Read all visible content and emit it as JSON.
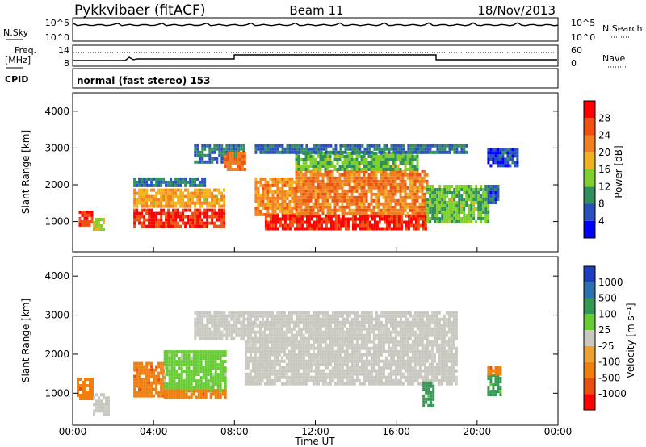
{
  "header": {
    "station": "Pykkvibaer (fitACF)",
    "beam": "Beam 11",
    "date": "18/Nov/2013"
  },
  "noise_panel": {
    "left_label": "N.Sky",
    "right_label": "N.Search",
    "left_ticks": [
      "10^5",
      "10^0"
    ],
    "right_ticks": [
      "10^5",
      "10^0"
    ]
  },
  "freq_panel": {
    "left_label_1": "Freq.",
    "left_label_2": "[MHz]",
    "right_label": "Nave",
    "left_ticks": [
      "14",
      "8"
    ],
    "right_ticks": [
      "60",
      "0"
    ]
  },
  "cpid": {
    "label": "CPID",
    "mode": "normal (fast stereo) 153"
  },
  "colors": {
    "power_scale": [
      "#0000ff",
      "#2b4fbf",
      "#2f8f5f",
      "#7fcf2f",
      "#f0b020",
      "#f08020",
      "#f05010",
      "#ff0000"
    ],
    "velocity_scale": [
      "#ff0000",
      "#e85010",
      "#f07f10",
      "#f0a030",
      "#c8c8c0",
      "#66cc33",
      "#339955",
      "#2b70b0",
      "#1f3fbf"
    ]
  },
  "chart_data": [
    {
      "type": "heatmap",
      "title": "Power",
      "ylabel": "Slant Range [km]",
      "ylim": [
        180,
        4500
      ],
      "yticks": [
        "1000",
        "2000",
        "3000",
        "4000"
      ],
      "xlim": [
        "00:00",
        "24:00"
      ],
      "colorbar": {
        "label": "Power [dB]",
        "ticks": [
          "4",
          "8",
          "12",
          "16",
          "20",
          "24",
          "28"
        ],
        "range": [
          0,
          30
        ]
      },
      "regions": [
        {
          "t": [
            0.3,
            1.0
          ],
          "range": [
            900,
            1300
          ],
          "value": 26
        },
        {
          "t": [
            1.0,
            1.5
          ],
          "range": [
            800,
            1100
          ],
          "value": 14
        },
        {
          "t": [
            3.0,
            7.5
          ],
          "range": [
            900,
            1350
          ],
          "value": 27
        },
        {
          "t": [
            3.0,
            7.5
          ],
          "range": [
            1400,
            1900
          ],
          "value": 18
        },
        {
          "t": [
            3.0,
            6.5
          ],
          "range": [
            1950,
            2200
          ],
          "value": 8
        },
        {
          "t": [
            6.0,
            8.5
          ],
          "range": [
            2600,
            3100
          ],
          "value": 8
        },
        {
          "t": [
            7.5,
            8.5
          ],
          "range": [
            2400,
            2900
          ],
          "value": 22
        },
        {
          "t": [
            9.0,
            11.0
          ],
          "range": [
            1200,
            2200
          ],
          "value": 20
        },
        {
          "t": [
            9.5,
            17.5
          ],
          "range": [
            800,
            1200
          ],
          "value": 27
        },
        {
          "t": [
            11.0,
            17.5
          ],
          "range": [
            1200,
            2400
          ],
          "value": 21
        },
        {
          "t": [
            11.0,
            17.0
          ],
          "range": [
            2400,
            2900
          ],
          "value": 12
        },
        {
          "t": [
            9.0,
            19.5
          ],
          "range": [
            2900,
            3100
          ],
          "value": 7
        },
        {
          "t": [
            17.5,
            20.5
          ],
          "range": [
            1000,
            2000
          ],
          "value": 12
        },
        {
          "t": [
            20.5,
            21.0
          ],
          "range": [
            1500,
            2000
          ],
          "value": 6
        },
        {
          "t": [
            20.5,
            22.0
          ],
          "range": [
            2500,
            3000
          ],
          "value": 5
        }
      ]
    },
    {
      "type": "heatmap",
      "title": "Velocity",
      "ylabel": "Slant Range [km]",
      "xlabel": "Time UT",
      "ylim": [
        180,
        4500
      ],
      "yticks": [
        "1000",
        "2000",
        "3000",
        "4000"
      ],
      "xlim": [
        "00:00",
        "24:00"
      ],
      "xticks": [
        "00:00",
        "04:00",
        "08:00",
        "12:00",
        "16:00",
        "20:00",
        "00:00"
      ],
      "colorbar": {
        "label": "Velocity [m s⁻¹]",
        "ticks": [
          "1000",
          "500",
          "100",
          "25",
          "-25",
          "-100",
          "-500",
          "-1000"
        ]
      },
      "regions": [
        {
          "t": [
            0.2,
            1.0
          ],
          "range": [
            900,
            1400
          ],
          "value": -300
        },
        {
          "t": [
            1.0,
            1.8
          ],
          "range": [
            500,
            1000
          ],
          "value": 0
        },
        {
          "t": [
            3.0,
            4.5
          ],
          "range": [
            900,
            1800
          ],
          "value": -200
        },
        {
          "t": [
            4.5,
            7.5
          ],
          "range": [
            1100,
            2100
          ],
          "value": 80
        },
        {
          "t": [
            4.5,
            7.5
          ],
          "range": [
            900,
            1100
          ],
          "value": -150
        },
        {
          "t": [
            6.0,
            8.5
          ],
          "range": [
            2400,
            3100
          ],
          "value": 0
        },
        {
          "t": [
            8.5,
            19.0
          ],
          "range": [
            1200,
            3100
          ],
          "value": 0
        },
        {
          "t": [
            17.3,
            17.8
          ],
          "range": [
            700,
            1300
          ],
          "value": 120
        },
        {
          "t": [
            20.5,
            21.2
          ],
          "range": [
            1000,
            1500
          ],
          "value": 150
        },
        {
          "t": [
            20.5,
            21.2
          ],
          "range": [
            1500,
            1700
          ],
          "value": -200
        }
      ]
    }
  ]
}
